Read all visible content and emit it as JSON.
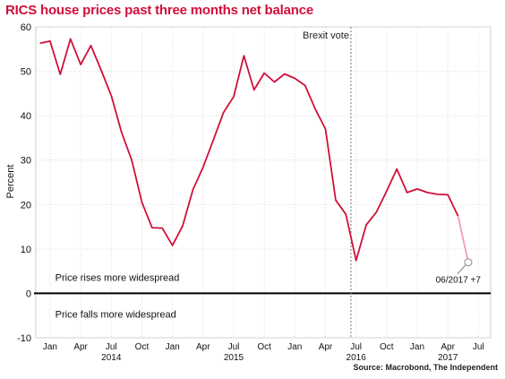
{
  "chart_data": {
    "type": "line",
    "title": "RICS house prices past three months net balance",
    "ylabel": "Percent",
    "xlabel": "",
    "ylim": [
      -10,
      60
    ],
    "yticks": [
      -10,
      0,
      10,
      20,
      30,
      40,
      50,
      60
    ],
    "grid": true,
    "x_month_labels": [
      {
        "month": 1,
        "label": "Jan"
      },
      {
        "month": 4,
        "label": "Apr"
      },
      {
        "month": 7,
        "label": "Jul"
      },
      {
        "month": 10,
        "label": "Oct"
      },
      {
        "month": 13,
        "label": "Jan"
      },
      {
        "month": 16,
        "label": "Apr"
      },
      {
        "month": 19,
        "label": "Jul"
      },
      {
        "month": 22,
        "label": "Oct"
      },
      {
        "month": 25,
        "label": "Jan"
      },
      {
        "month": 28,
        "label": "Apr"
      },
      {
        "month": 31,
        "label": "Jul"
      },
      {
        "month": 34,
        "label": "Oct"
      },
      {
        "month": 37,
        "label": "Jan"
      },
      {
        "month": 40,
        "label": "Apr"
      },
      {
        "month": 43,
        "label": "Jul"
      }
    ],
    "year_labels": [
      {
        "month": 7,
        "label": "2014"
      },
      {
        "month": 19,
        "label": "2015"
      },
      {
        "month": 31,
        "label": "2016"
      },
      {
        "month": 40,
        "label": "2017"
      }
    ],
    "series": [
      {
        "color": "#d0103a",
        "x": [
          0,
          1,
          2,
          3,
          4,
          5,
          6,
          7,
          8,
          9,
          10,
          11,
          12,
          13,
          14,
          15,
          16,
          17,
          18,
          19,
          20,
          21,
          22,
          23,
          24,
          25,
          26,
          27,
          28,
          29,
          30,
          31,
          32,
          33,
          34,
          35,
          36,
          37,
          38,
          39,
          40,
          41
        ],
        "values": [
          56.3,
          56.8,
          49.3,
          57.3,
          51.5,
          55.8,
          50.3,
          44.5,
          36.3,
          30.0,
          20.5,
          14.8,
          14.7,
          10.8,
          15.2,
          23.3,
          28.4,
          34.5,
          40.7,
          44.3,
          53.5,
          45.8,
          49.6,
          47.6,
          49.4,
          48.4,
          46.8,
          41.5,
          37.0,
          21.0,
          17.8,
          7.4,
          15.4,
          18.3,
          23.0,
          28.0,
          22.7,
          23.5,
          22.7,
          22.3,
          22.2,
          17.4
        ]
      }
    ],
    "projection": {
      "color": "#f0a0b0",
      "x": [
        41,
        42
      ],
      "values": [
        17.4,
        7
      ]
    },
    "annotations": {
      "brexit_vote": {
        "label": "Brexit vote",
        "month": 30.5
      },
      "latest_point": {
        "label": "06/2017 +7",
        "month": 42,
        "value": 7
      },
      "above_zero": "Price rises more widespread",
      "below_zero": "Price falls more widespread"
    },
    "source": "Source: Macrobond, The Independent"
  }
}
